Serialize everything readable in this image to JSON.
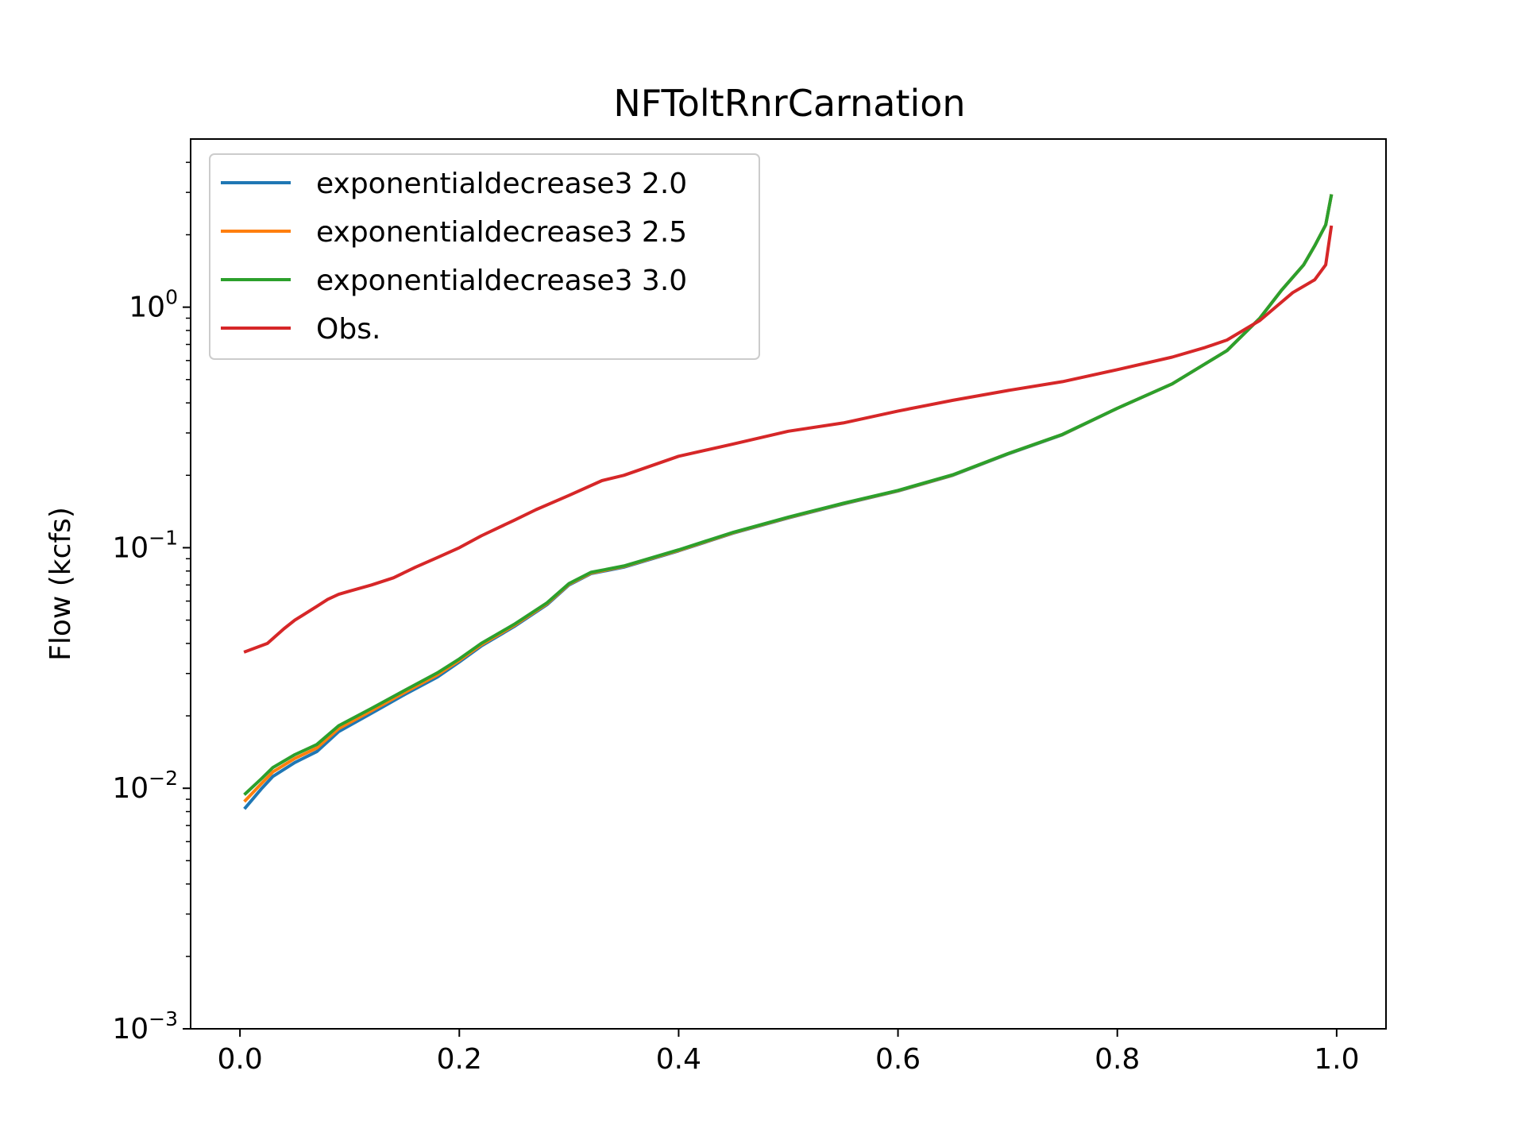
{
  "chart_data": {
    "type": "line",
    "title": "NFToltRnrCarnation",
    "xlabel": "",
    "ylabel": "Flow (kcfs)",
    "yscale": "log",
    "xlim": [
      -0.045,
      1.045
    ],
    "ylim": [
      0.001,
      5.0
    ],
    "grid": false,
    "legend_position": "upper-left",
    "x_ticks": [
      {
        "value": 0.0,
        "label": "0.0"
      },
      {
        "value": 0.2,
        "label": "0.2"
      },
      {
        "value": 0.4,
        "label": "0.4"
      },
      {
        "value": 0.6,
        "label": "0.6"
      },
      {
        "value": 0.8,
        "label": "0.8"
      },
      {
        "value": 1.0,
        "label": "1.0"
      }
    ],
    "y_ticks": [
      {
        "value": 0.001,
        "base": "10",
        "exp": "−3"
      },
      {
        "value": 0.01,
        "base": "10",
        "exp": "−2"
      },
      {
        "value": 0.1,
        "base": "10",
        "exp": "−1"
      },
      {
        "value": 1.0,
        "base": "10",
        "exp": "0"
      }
    ],
    "series": [
      {
        "name": "exponentialdecrease3 2.0",
        "color": "#1f77b4",
        "x": [
          0.005,
          0.02,
          0.03,
          0.05,
          0.07,
          0.09,
          0.12,
          0.15,
          0.18,
          0.2,
          0.22,
          0.25,
          0.28,
          0.3,
          0.32,
          0.35,
          0.4,
          0.45,
          0.5,
          0.55,
          0.6,
          0.65,
          0.7,
          0.75,
          0.8,
          0.85,
          0.9,
          0.93,
          0.95,
          0.97,
          0.98,
          0.99,
          0.995
        ],
        "y": [
          0.0083,
          0.01,
          0.0112,
          0.0128,
          0.0142,
          0.0172,
          0.0205,
          0.0245,
          0.029,
          0.0335,
          0.039,
          0.047,
          0.058,
          0.07,
          0.078,
          0.083,
          0.097,
          0.115,
          0.133,
          0.152,
          0.172,
          0.2,
          0.245,
          0.295,
          0.38,
          0.48,
          0.66,
          0.9,
          1.18,
          1.5,
          1.8,
          2.2,
          2.9
        ]
      },
      {
        "name": "exponentialdecrease3 2.5",
        "color": "#ff7f0e",
        "x": [
          0.005,
          0.02,
          0.03,
          0.05,
          0.07,
          0.09,
          0.12,
          0.15,
          0.18,
          0.2,
          0.22,
          0.25,
          0.28,
          0.3,
          0.32,
          0.35,
          0.4,
          0.45,
          0.5,
          0.55,
          0.6,
          0.65,
          0.7,
          0.75,
          0.8,
          0.85,
          0.9,
          0.93,
          0.95,
          0.97,
          0.98,
          0.99,
          0.995
        ],
        "y": [
          0.0089,
          0.0105,
          0.0117,
          0.0133,
          0.0147,
          0.0177,
          0.021,
          0.025,
          0.0296,
          0.034,
          0.0395,
          0.0475,
          0.0585,
          0.0705,
          0.0785,
          0.0835,
          0.0975,
          0.1155,
          0.1335,
          0.1525,
          0.1725,
          0.2005,
          0.2455,
          0.2955,
          0.38,
          0.48,
          0.66,
          0.9,
          1.18,
          1.5,
          1.8,
          2.2,
          2.9
        ]
      },
      {
        "name": "exponentialdecrease3 3.0",
        "color": "#2ca02c",
        "x": [
          0.005,
          0.02,
          0.03,
          0.05,
          0.07,
          0.09,
          0.12,
          0.15,
          0.18,
          0.2,
          0.22,
          0.25,
          0.28,
          0.3,
          0.32,
          0.35,
          0.4,
          0.45,
          0.5,
          0.55,
          0.6,
          0.65,
          0.7,
          0.75,
          0.8,
          0.85,
          0.9,
          0.93,
          0.95,
          0.97,
          0.98,
          0.99,
          0.995
        ],
        "y": [
          0.0095,
          0.011,
          0.0122,
          0.0138,
          0.0152,
          0.0182,
          0.0215,
          0.0255,
          0.0302,
          0.0345,
          0.04,
          0.048,
          0.059,
          0.071,
          0.079,
          0.084,
          0.098,
          0.116,
          0.134,
          0.153,
          0.173,
          0.201,
          0.246,
          0.296,
          0.38,
          0.48,
          0.66,
          0.9,
          1.18,
          1.5,
          1.8,
          2.2,
          2.9
        ]
      },
      {
        "name": "Obs.",
        "color": "#d62728",
        "x": [
          0.005,
          0.025,
          0.04,
          0.05,
          0.07,
          0.08,
          0.09,
          0.1,
          0.12,
          0.14,
          0.16,
          0.18,
          0.2,
          0.22,
          0.25,
          0.27,
          0.3,
          0.33,
          0.35,
          0.4,
          0.45,
          0.5,
          0.55,
          0.6,
          0.65,
          0.7,
          0.75,
          0.8,
          0.85,
          0.88,
          0.9,
          0.93,
          0.96,
          0.98,
          0.99,
          0.995
        ],
        "y": [
          0.037,
          0.04,
          0.046,
          0.05,
          0.057,
          0.061,
          0.064,
          0.066,
          0.07,
          0.075,
          0.083,
          0.091,
          0.1,
          0.112,
          0.13,
          0.144,
          0.165,
          0.19,
          0.2,
          0.24,
          0.27,
          0.305,
          0.33,
          0.37,
          0.41,
          0.45,
          0.49,
          0.55,
          0.62,
          0.68,
          0.73,
          0.88,
          1.15,
          1.3,
          1.5,
          2.15
        ]
      }
    ]
  }
}
